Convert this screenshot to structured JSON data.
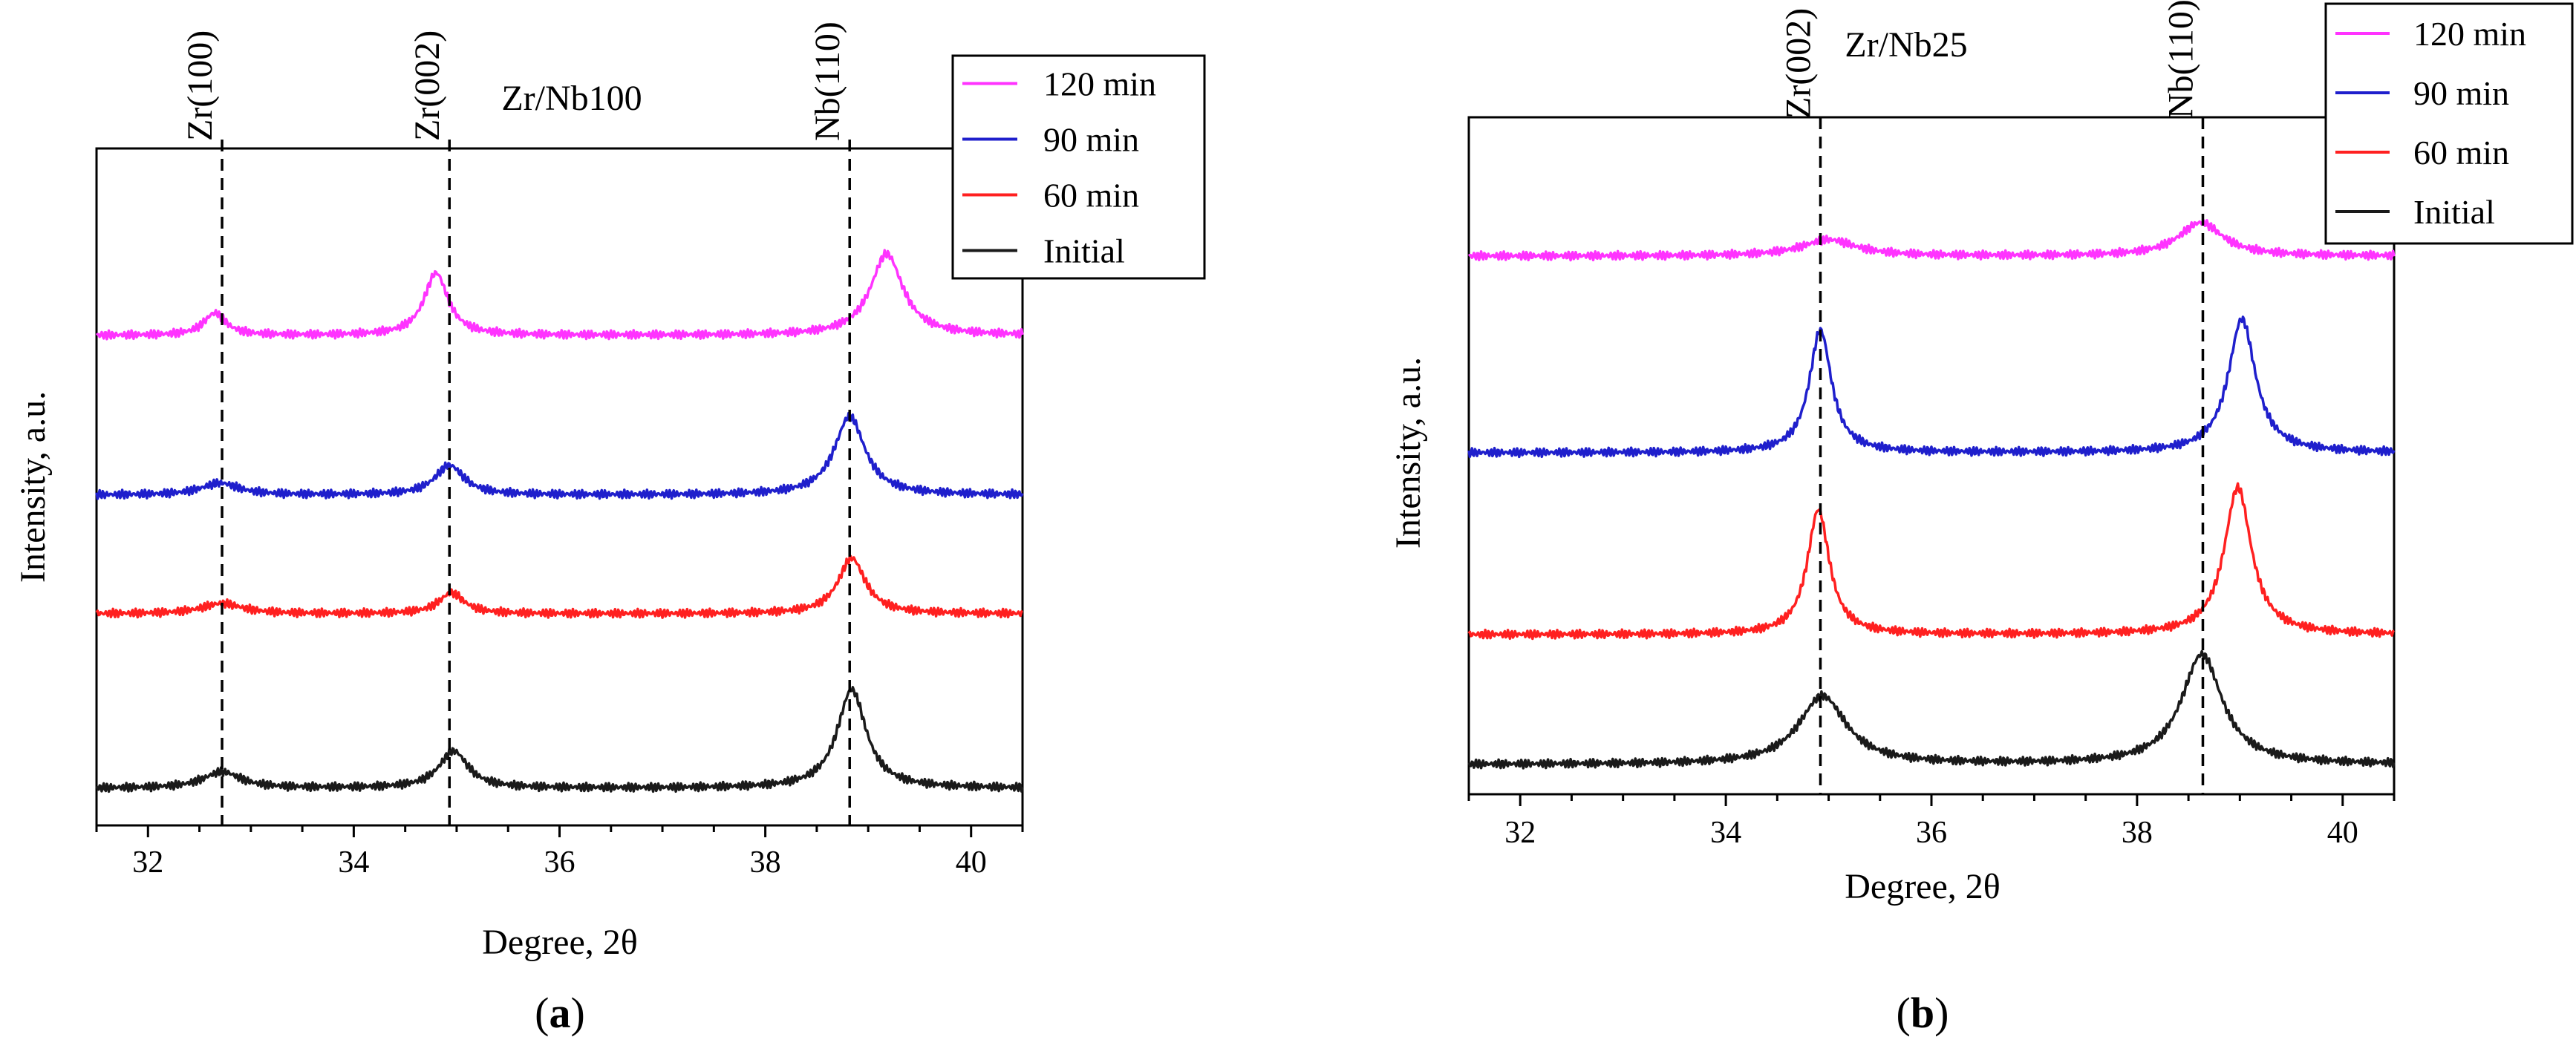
{
  "panels": [
    {
      "caption_letter": "a",
      "chart_data": {
        "type": "line",
        "title": "Zr/Nb100",
        "xlabel": "Degree, 2θ",
        "ylabel": "Intensity, a.u.",
        "xlim": [
          31.5,
          40.5
        ],
        "xticks": [
          32,
          34,
          36,
          38,
          40
        ],
        "y_tick_labels": false,
        "grid": false,
        "legend_position": "top-right",
        "legend": [
          "120 min",
          "90 min",
          "60 min",
          "Initial"
        ],
        "reference_lines": [
          {
            "label": "Zr(100)",
            "x": 32.72
          },
          {
            "label": "Zr(002)",
            "x": 34.93
          },
          {
            "label": "Nb(110)",
            "x": 38.82
          }
        ],
        "series": [
          {
            "name": "120 min",
            "color": "#ff33ff",
            "baseline": 6.4,
            "peaks": [
              {
                "x": 32.65,
                "height": 0.3,
                "width": 0.13
              },
              {
                "x": 34.8,
                "height": 0.84,
                "width": 0.14
              },
              {
                "x": 39.18,
                "height": 1.1,
                "width": 0.19
              }
            ]
          },
          {
            "name": "90 min",
            "color": "#1f1fcc",
            "baseline": 4.25,
            "peaks": [
              {
                "x": 32.7,
                "height": 0.16,
                "width": 0.22
              },
              {
                "x": 34.93,
                "height": 0.4,
                "width": 0.17
              },
              {
                "x": 38.82,
                "height": 1.06,
                "width": 0.18
              }
            ]
          },
          {
            "name": "60 min",
            "color": "#ff2020",
            "baseline": 2.65,
            "peaks": [
              {
                "x": 32.72,
                "height": 0.14,
                "width": 0.24
              },
              {
                "x": 34.95,
                "height": 0.28,
                "width": 0.15
              },
              {
                "x": 38.84,
                "height": 0.75,
                "width": 0.16
              }
            ]
          },
          {
            "name": "Initial",
            "color": "#1a1a1a",
            "baseline": 0.3,
            "peaks": [
              {
                "x": 32.72,
                "height": 0.22,
                "width": 0.22
              },
              {
                "x": 34.97,
                "height": 0.5,
                "width": 0.17
              },
              {
                "x": 38.84,
                "height": 1.33,
                "width": 0.17
              }
            ]
          }
        ]
      }
    },
    {
      "caption_letter": "b",
      "chart_data": {
        "type": "line",
        "title": "Zr/Nb25",
        "xlabel": "Degree, 2θ",
        "ylabel": "Intensity, a.u.",
        "xlim": [
          31.5,
          40.5
        ],
        "xticks": [
          32,
          34,
          36,
          38,
          40
        ],
        "y_tick_labels": false,
        "grid": false,
        "legend_position": "top-right",
        "legend": [
          "120 min",
          "90 min",
          "60 min",
          "Initial"
        ],
        "reference_lines": [
          {
            "label": "Zr(002)",
            "x": 34.92
          },
          {
            "label": "Nb(110)",
            "x": 38.64
          }
        ],
        "series": [
          {
            "name": "120 min",
            "color": "#ff33ff",
            "baseline": 7.05,
            "peaks": [
              {
                "x": 35.0,
                "height": 0.22,
                "width": 0.32
              },
              {
                "x": 38.62,
                "height": 0.45,
                "width": 0.26
              }
            ]
          },
          {
            "name": "90 min",
            "color": "#1f1fcc",
            "baseline": 4.4,
            "peaks": [
              {
                "x": 34.92,
                "height": 1.65,
                "width": 0.13
              },
              {
                "x": 39.02,
                "height": 1.8,
                "width": 0.16
              }
            ]
          },
          {
            "name": "60 min",
            "color": "#ff2020",
            "baseline": 1.95,
            "peaks": [
              {
                "x": 34.9,
                "height": 1.68,
                "width": 0.13
              },
              {
                "x": 38.98,
                "height": 1.98,
                "width": 0.16
              }
            ]
          },
          {
            "name": "Initial",
            "color": "#1a1a1a",
            "baseline": 0.2,
            "peaks": [
              {
                "x": 34.94,
                "height": 0.92,
                "width": 0.28
              },
              {
                "x": 38.63,
                "height": 1.48,
                "width": 0.24
              }
            ]
          }
        ]
      }
    }
  ]
}
